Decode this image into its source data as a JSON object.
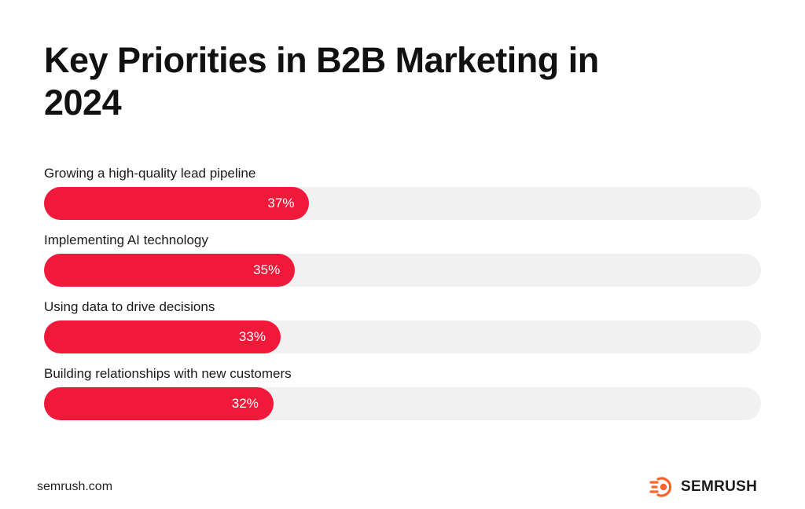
{
  "title": "Key Priorities in B2B Marketing in 2024",
  "colors": {
    "bar": "#f0193a",
    "track": "#f1f1f1",
    "brand_accent": "#ff642d"
  },
  "chart_data": {
    "type": "bar",
    "orientation": "horizontal",
    "title": "Key Priorities in B2B Marketing in 2024",
    "categories": [
      "Growing a high-quality lead pipeline",
      "Implementing AI technology",
      "Using data to drive decisions",
      "Building relationships with new customers"
    ],
    "values": [
      37,
      35,
      33,
      32
    ],
    "value_labels": [
      "37%",
      "35%",
      "33%",
      "32%"
    ],
    "unit": "%",
    "xlim": [
      0,
      100
    ],
    "grid": false,
    "legend": "none"
  },
  "footer": {
    "url": "semrush.com",
    "brand": "SEMRUSH",
    "brand_icon": "semrush-logo-icon"
  }
}
